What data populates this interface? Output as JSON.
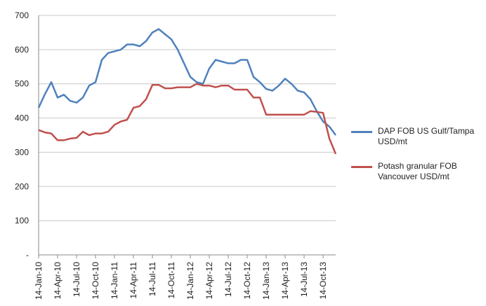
{
  "chart_data": {
    "type": "line",
    "categories": [
      "14-Jan-10",
      null,
      null,
      "14-Apr-10",
      null,
      null,
      "14-Jul-10",
      null,
      null,
      "14-Oct-10",
      null,
      null,
      "14-Jan-11",
      null,
      null,
      "14-Apr-11",
      null,
      null,
      "14-Jul-11",
      null,
      null,
      "14-Oct-11",
      null,
      null,
      "14-Jan-12",
      null,
      null,
      "14-Apr-12",
      null,
      null,
      "14-Jul-12",
      null,
      null,
      "14-Oct-12",
      null,
      null,
      "14-Jan-13",
      null,
      null,
      "14-Apr-13",
      null,
      null,
      "14-Jul-13",
      null,
      null,
      "14-Oct-13",
      null,
      null
    ],
    "series": [
      {
        "name": "DAP FOB US Gulf/Tampa USD/mt",
        "color": "#4f81bd",
        "values": [
          430,
          470,
          505,
          460,
          468,
          450,
          445,
          460,
          495,
          505,
          570,
          590,
          595,
          600,
          615,
          615,
          610,
          625,
          650,
          660,
          645,
          630,
          600,
          560,
          520,
          505,
          500,
          545,
          570,
          565,
          560,
          560,
          570,
          570,
          520,
          505,
          485,
          480,
          495,
          515,
          500,
          480,
          475,
          455,
          420,
          390,
          375,
          350
        ]
      },
      {
        "name": "Potash granular FOB Vancouver USD/mt",
        "color": "#c0504d",
        "values": [
          365,
          358,
          355,
          335,
          335,
          340,
          342,
          360,
          350,
          355,
          355,
          360,
          380,
          390,
          395,
          430,
          435,
          455,
          497,
          497,
          487,
          487,
          490,
          490,
          490,
          500,
          495,
          495,
          490,
          495,
          495,
          483,
          483,
          483,
          460,
          460,
          410,
          410,
          410,
          410,
          410,
          410,
          410,
          420,
          418,
          415,
          340,
          295
        ]
      }
    ],
    "ylim": [
      0,
      700
    ],
    "yticks": [
      {
        "value": 0,
        "label": "-"
      },
      100,
      200,
      300,
      400,
      500,
      600,
      700
    ],
    "grid": true
  }
}
